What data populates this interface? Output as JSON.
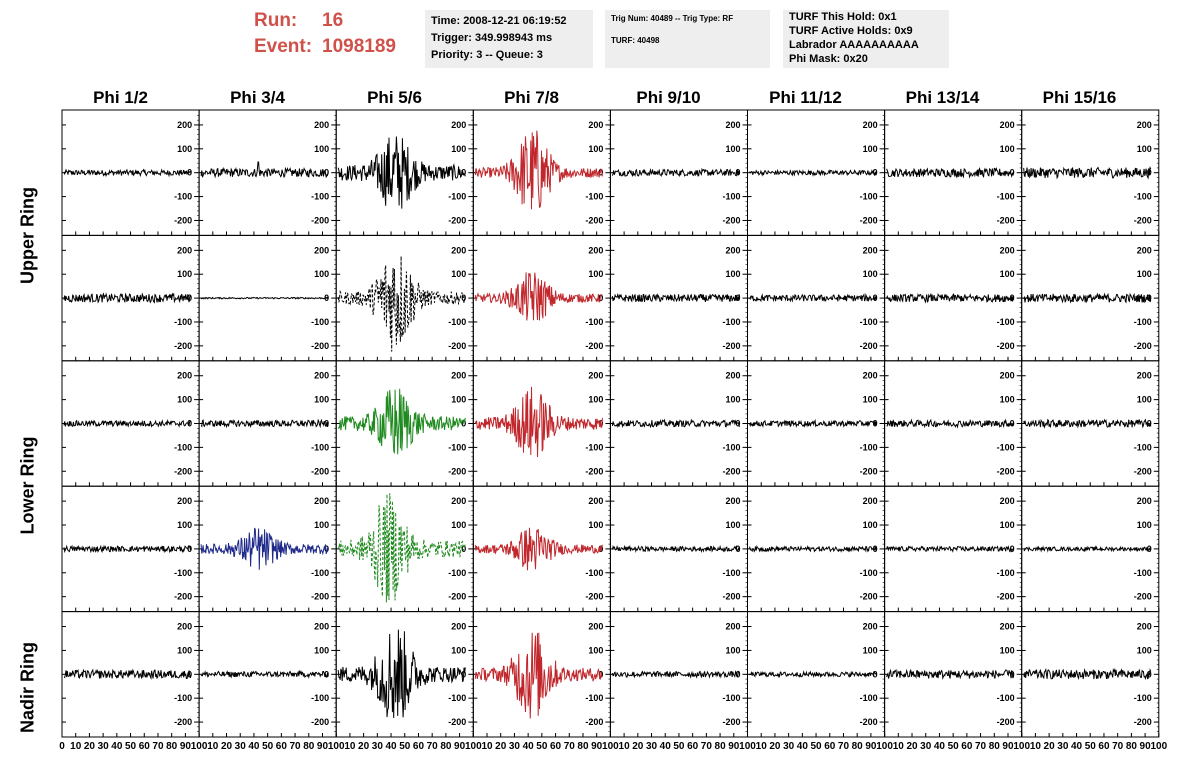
{
  "header": {
    "run_label": "Run:",
    "run_value": "16",
    "event_label": "Event:",
    "event_value": "1098189"
  },
  "info_boxes": [
    {
      "lines": [
        "Time: 2008-12-21 06:19:52",
        "Trigger: 349.998943 ms",
        "Priority: 3 -- Queue: 3"
      ]
    },
    {
      "lines": [
        "Trig Num: 40489 -- Trig Type: RF",
        "",
        "TURF: 40498"
      ]
    },
    {
      "lines": [
        "TURF This Hold: 0x1",
        "TURF Active Holds: 0x9",
        "Labrador AAAAAAAAAA",
        "Phi Mask: 0x20"
      ]
    }
  ],
  "columns": [
    "Phi 1/2",
    "Phi 3/4",
    "Phi 5/6",
    "Phi 7/8",
    "Phi 9/10",
    "Phi 11/12",
    "Phi 13/14",
    "Phi 15/16"
  ],
  "row_labels": [
    "Upper Ring",
    "Lower Ring",
    "Nadir Ring"
  ],
  "colors": {
    "quiet": "#000000",
    "signal_red": "#c0262b",
    "signal_green": "#1f8a1f",
    "signal_blue": "#1f2a8a",
    "header_red": "#d0504a",
    "info_bg": "#eeeeee"
  },
  "chart_data": {
    "type": "line",
    "layout": "grid 5 rows x 8 columns of waveform panels",
    "x_range": [
      0,
      100
    ],
    "y_range": [
      -250,
      250
    ],
    "x_ticks": [
      0,
      10,
      20,
      30,
      40,
      50,
      60,
      70,
      80,
      90,
      100
    ],
    "y_ticks": [
      -200,
      -100,
      0,
      100,
      200
    ],
    "panels": [
      [
        {
          "color": "black",
          "amp": 12
        },
        {
          "color": "black",
          "amp": 18,
          "spike": 45
        },
        {
          "color": "black",
          "amp": 55,
          "burst": 45,
          "peak": 170
        },
        {
          "color": "red",
          "amp": 35,
          "burst": 45,
          "peak": 210
        },
        {
          "color": "black",
          "amp": 14
        },
        {
          "color": "black",
          "amp": 10
        },
        {
          "color": "black",
          "amp": 18
        },
        {
          "color": "black",
          "amp": 22
        }
      ],
      [
        {
          "color": "black",
          "amp": 18
        },
        {
          "color": "black",
          "amp": 3
        },
        {
          "color": "black",
          "amp": 45,
          "burst": 45,
          "peak": 250,
          "dashed": true
        },
        {
          "color": "red",
          "amp": 30,
          "burst": 45,
          "peak": 120
        },
        {
          "color": "black",
          "amp": 16
        },
        {
          "color": "black",
          "amp": 14
        },
        {
          "color": "black",
          "amp": 16
        },
        {
          "color": "black",
          "amp": 18
        }
      ],
      [
        {
          "color": "black",
          "amp": 12
        },
        {
          "color": "black",
          "amp": 14
        },
        {
          "color": "green",
          "amp": 50,
          "burst": 45,
          "peak": 160
        },
        {
          "color": "red",
          "amp": 45,
          "burst": 45,
          "peak": 160
        },
        {
          "color": "black",
          "amp": 14
        },
        {
          "color": "black",
          "amp": 12
        },
        {
          "color": "black",
          "amp": 14
        },
        {
          "color": "black",
          "amp": 16
        }
      ],
      [
        {
          "color": "black",
          "amp": 12
        },
        {
          "color": "blue",
          "amp": 35,
          "burst": 45,
          "peak": 90
        },
        {
          "color": "green",
          "amp": 60,
          "burst": 40,
          "peak": 240,
          "dashed": true
        },
        {
          "color": "red",
          "amp": 30,
          "burst": 45,
          "peak": 100
        },
        {
          "color": "black",
          "amp": 10
        },
        {
          "color": "black",
          "amp": 10
        },
        {
          "color": "black",
          "amp": 10
        },
        {
          "color": "black",
          "amp": 8
        }
      ],
      [
        {
          "color": "black",
          "amp": 18
        },
        {
          "color": "black",
          "amp": 12
        },
        {
          "color": "black",
          "amp": 55,
          "burst": 45,
          "peak": 230
        },
        {
          "color": "red",
          "amp": 45,
          "burst": 45,
          "peak": 210
        },
        {
          "color": "black",
          "amp": 12
        },
        {
          "color": "black",
          "amp": 10
        },
        {
          "color": "black",
          "amp": 18
        },
        {
          "color": "black",
          "amp": 20
        }
      ]
    ]
  }
}
